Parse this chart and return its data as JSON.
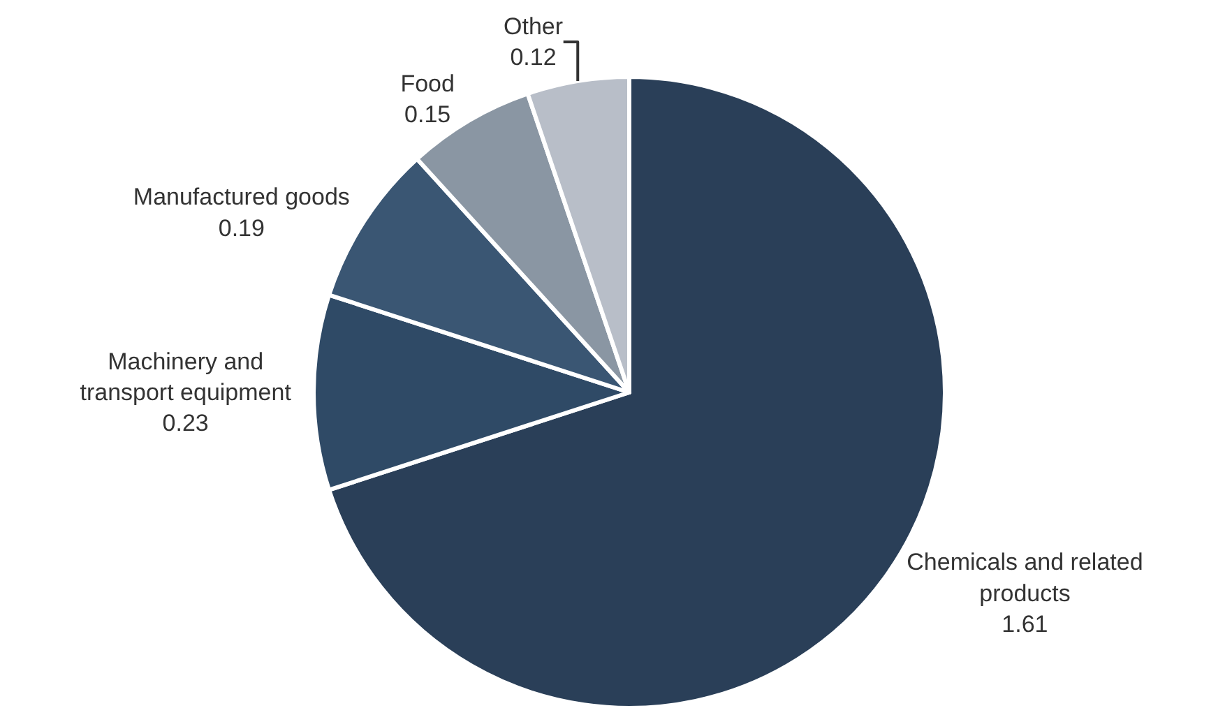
{
  "chart_data": {
    "type": "pie",
    "categories": [
      "Chemicals and related products",
      "Machinery and transport equipment",
      "Manufactured goods",
      "Food",
      "Other"
    ],
    "values": [
      1.61,
      0.23,
      0.19,
      0.15,
      0.12
    ],
    "colors": [
      "#2a3f58",
      "#2f4a66",
      "#3a5673",
      "#8a96a3",
      "#b8bec8"
    ],
    "data_labels": true,
    "legend": false
  }
}
